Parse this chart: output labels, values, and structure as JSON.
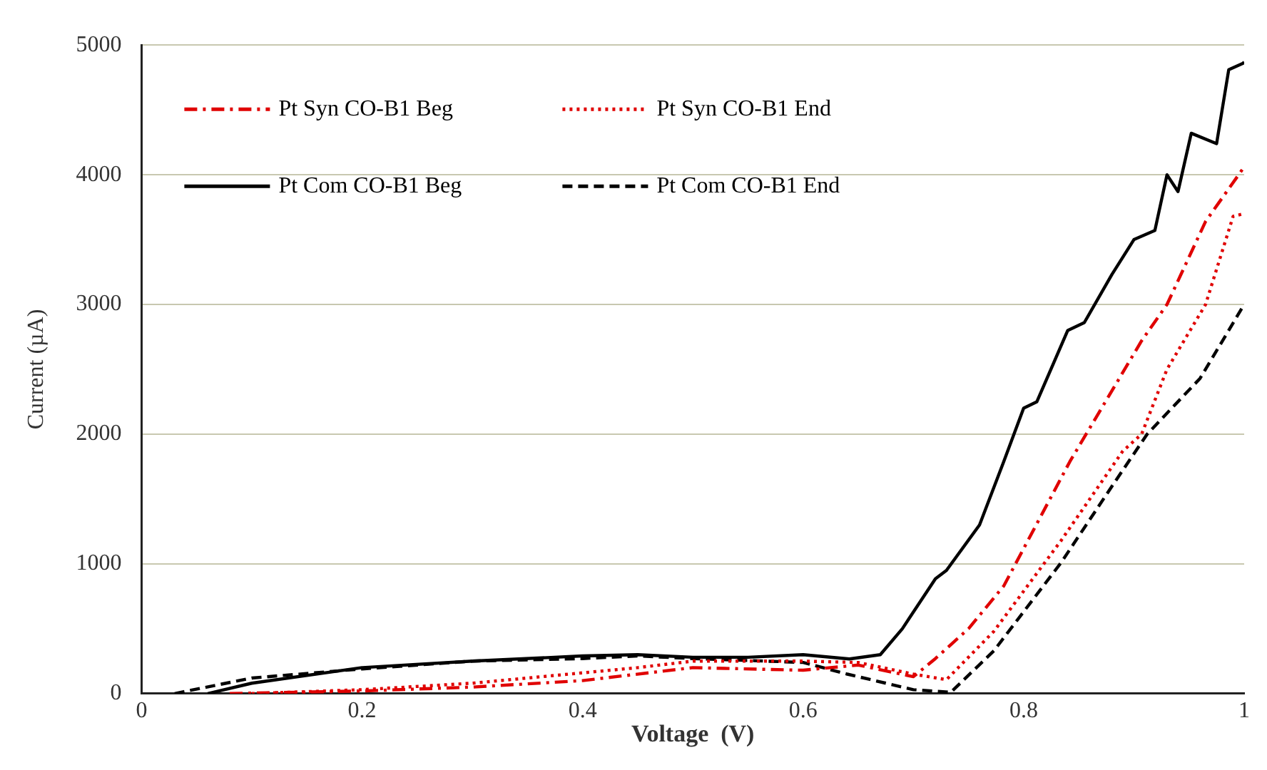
{
  "chart_data": {
    "type": "line",
    "xlabel": "Voltage  (V)",
    "ylabel": "Current (µA)",
    "xlim": [
      0,
      1
    ],
    "ylim": [
      0,
      5000
    ],
    "xticks": [
      0,
      0.2,
      0.4,
      0.6,
      0.8,
      1
    ],
    "yticks": [
      0,
      1000,
      2000,
      3000,
      4000,
      5000
    ],
    "grid": "y",
    "legend": "top left",
    "marker": "none",
    "series": [
      {
        "name": "Pt Syn CO-B1 Beg",
        "color": "#e00000",
        "line_style": "dashdot",
        "x": [
          0.08,
          0.2,
          0.3,
          0.4,
          0.5,
          0.6,
          0.65,
          0.7,
          0.72,
          0.75,
          0.782,
          0.842,
          0.907,
          0.93,
          0.965,
          1.0
        ],
        "values": [
          0,
          20,
          50,
          100,
          200,
          180,
          220,
          130,
          270,
          500,
          830,
          1790,
          2720,
          3000,
          3640,
          4060
        ]
      },
      {
        "name": "Pt Syn CO-B1 End",
        "color": "#e00000",
        "line_style": "dotted",
        "x": [
          0.1,
          0.2,
          0.3,
          0.45,
          0.5,
          0.6,
          0.65,
          0.7,
          0.73,
          0.773,
          0.834,
          0.89,
          0.907,
          0.93,
          0.965,
          0.99,
          1.0
        ],
        "values": [
          0,
          30,
          80,
          200,
          250,
          250,
          240,
          150,
          107,
          480,
          1180,
          1870,
          2000,
          2500,
          3000,
          3680,
          3700
        ]
      },
      {
        "name": "Pt Com CO-B1 Beg",
        "color": "#000000",
        "line_style": "solid",
        "x": [
          0.06,
          0.1,
          0.2,
          0.3,
          0.4,
          0.45,
          0.5,
          0.55,
          0.6,
          0.642,
          0.67,
          0.69,
          0.72,
          0.73,
          0.76,
          0.782,
          0.8,
          0.812,
          0.84,
          0.855,
          0.88,
          0.9,
          0.919,
          0.93,
          0.94,
          0.952,
          0.975,
          0.986,
          0.999,
          1.0
        ],
        "values": [
          0,
          80,
          200,
          250,
          290,
          300,
          280,
          280,
          300,
          267,
          300,
          500,
          885,
          950,
          1300,
          1790,
          2200,
          2250,
          2800,
          2860,
          3230,
          3500,
          3570,
          4000,
          3870,
          4320,
          4240,
          4810,
          4860,
          4870
        ]
      },
      {
        "name": "Pt Com CO-B1 End",
        "color": "#000000",
        "line_style": "dashed",
        "x": [
          0.03,
          0.1,
          0.2,
          0.3,
          0.4,
          0.45,
          0.5,
          0.6,
          0.64,
          0.7,
          0.734,
          0.773,
          0.834,
          0.881,
          0.912,
          0.96,
          1.0
        ],
        "values": [
          0,
          120,
          190,
          250,
          270,
          290,
          270,
          240,
          150,
          30,
          10,
          330,
          1010,
          1610,
          2000,
          2430,
          3000
        ]
      }
    ]
  }
}
